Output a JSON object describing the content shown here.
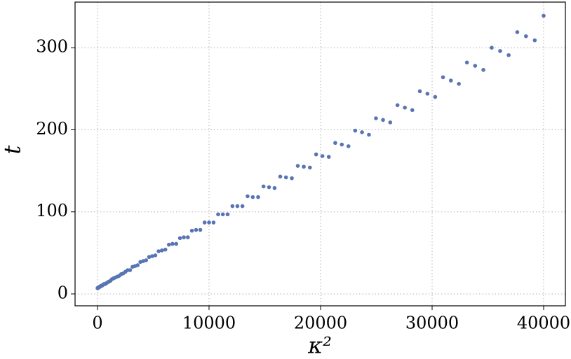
{
  "chart_data": {
    "type": "scatter",
    "xlabel": "κ²",
    "ylabel": "t",
    "series": [
      {
        "color": "#5875b3",
        "x": [
          4,
          16,
          36,
          64,
          100,
          144,
          196,
          256,
          324,
          400,
          484,
          576,
          676,
          784,
          900,
          1024,
          1156,
          1296,
          1444,
          1600,
          1764,
          1936,
          2116,
          2304,
          2500,
          2704,
          2916,
          3136,
          3364,
          3600,
          3844,
          4096,
          4356,
          4624,
          4900,
          5184,
          5476,
          5776,
          6084,
          6400,
          6724,
          7056,
          7396,
          7744,
          8100,
          8464,
          8836,
          9216,
          9604,
          10000,
          10404,
          10816,
          11236,
          11664,
          12100,
          12544,
          12996,
          13456,
          13924,
          14400,
          14884,
          15376,
          15876,
          16384,
          16900,
          17424,
          17956,
          18496,
          19044,
          19600,
          20164,
          20736,
          21316,
          21904,
          22500,
          23104,
          23716,
          24336,
          24964,
          25600,
          26244,
          26896,
          27556,
          28224,
          28900,
          29584,
          30276,
          30976,
          31684,
          32400,
          33124,
          33856,
          34596,
          35344,
          36100,
          36864,
          37636,
          38416,
          39204,
          40000
        ],
        "values": [
          7,
          7,
          7,
          8,
          8,
          8,
          9,
          9,
          10,
          10,
          11,
          12,
          12,
          13,
          14,
          15,
          16,
          18,
          19,
          20,
          21,
          22,
          24,
          25,
          27,
          29,
          29,
          33,
          34,
          35,
          39,
          40,
          41,
          45,
          46,
          47,
          52,
          53,
          54,
          60,
          61,
          61,
          68,
          69,
          69,
          77,
          78,
          78,
          87,
          87,
          87,
          97,
          97,
          97,
          107,
          107,
          107,
          119,
          118,
          118,
          131,
          130,
          129,
          143,
          142,
          141,
          156,
          155,
          154,
          170,
          168,
          167,
          184,
          182,
          180,
          199,
          197,
          194,
          214,
          212,
          209,
          230,
          227,
          224,
          247,
          244,
          240,
          264,
          260,
          256,
          282,
          278,
          273,
          300,
          296,
          291,
          319,
          314,
          309,
          339
        ]
      }
    ],
    "xlim": [
      -2013,
      41950
    ],
    "ylim": [
      -14.5,
      355.6
    ],
    "xticks": [
      0,
      10000,
      20000,
      30000,
      40000
    ],
    "yticks": [
      0,
      100,
      200,
      300
    ],
    "grid": true
  }
}
